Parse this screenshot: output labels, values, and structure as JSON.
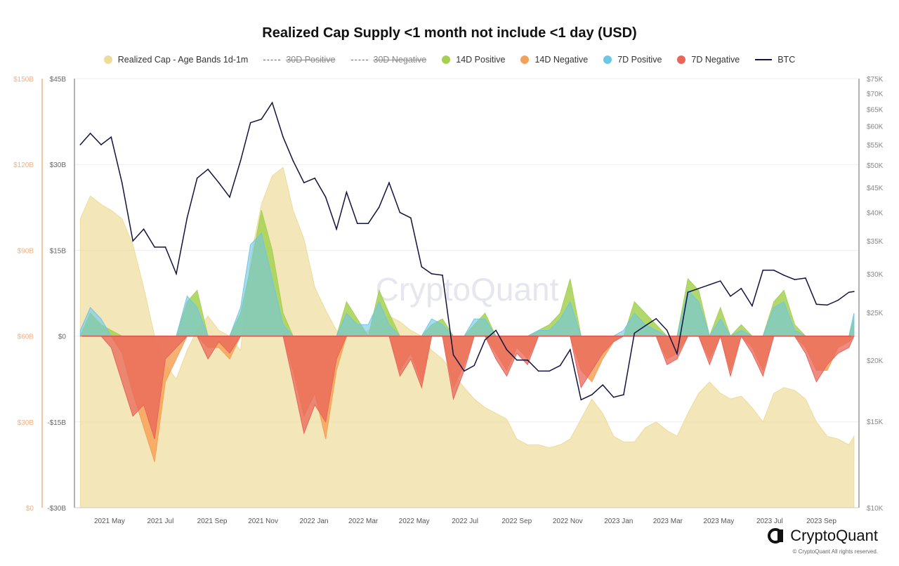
{
  "title": "Realized Cap Supply <1 month not include <1 day (USD)",
  "legend": [
    {
      "label": "Realized Cap - Age Bands 1d-1m",
      "color": "#eedc9a",
      "kind": "dot",
      "hidden": false
    },
    {
      "label": "30D Positive",
      "color": "#666666",
      "kind": "dash",
      "hidden": true
    },
    {
      "label": "30D Negative",
      "color": "#666666",
      "kind": "dash",
      "hidden": true
    },
    {
      "label": "14D Positive",
      "color": "#a5d152",
      "kind": "dot",
      "hidden": false
    },
    {
      "label": "14D Negative",
      "color": "#f4a259",
      "kind": "dot",
      "hidden": false
    },
    {
      "label": "7D Positive",
      "color": "#6ec6e6",
      "kind": "dot",
      "hidden": false
    },
    {
      "label": "7D Negative",
      "color": "#e8665a",
      "kind": "dot",
      "hidden": false
    },
    {
      "label": "BTC",
      "color": "#14123e",
      "kind": "line",
      "hidden": false
    }
  ],
  "watermark": "CryptoQuant",
  "logo_text": "CryptoQuant",
  "copyright": "© CryptoQuant All rights reserved.",
  "chart_data": {
    "type": "area",
    "x_ticks": [
      "2021 May",
      "2021 Jul",
      "2021 Sep",
      "2021 Nov",
      "2022 Jan",
      "2022 Mar",
      "2022 May",
      "2022 Jul",
      "2022 Sep",
      "2022 Nov",
      "2023 Jan",
      "2023 Mar",
      "2023 May",
      "2023 Jul",
      "2023 Sep"
    ],
    "x_tick_dates": [
      "2021-05-01",
      "2021-07-01",
      "2021-09-01",
      "2021-11-01",
      "2022-01-01",
      "2022-03-01",
      "2022-05-01",
      "2022-07-01",
      "2022-09-01",
      "2022-11-01",
      "2023-01-01",
      "2023-03-01",
      "2023-05-01",
      "2023-07-01",
      "2023-09-01"
    ],
    "x_range": [
      "2021-03-20",
      "2023-10-16"
    ],
    "y_left_outer": {
      "ticks": [
        "$0",
        "$30B",
        "$60B",
        "$90B",
        "$120B",
        "$150B"
      ],
      "range": [
        0,
        150
      ],
      "unit": "B USD"
    },
    "y_left_inner": {
      "ticks": [
        "-$30B",
        "-$15B",
        "$0",
        "$15B",
        "$30B",
        "$45B"
      ],
      "range": [
        -30,
        45
      ],
      "unit": "B USD"
    },
    "y_right": {
      "ticks": [
        "$10K",
        "$15K",
        "$20K",
        "$25K",
        "$30K",
        "$35K",
        "$40K",
        "$45K",
        "$50K",
        "$55K",
        "$60K",
        "$65K",
        "$70K",
        "$75K"
      ],
      "tick_values": [
        10,
        15,
        20,
        25,
        30,
        35,
        40,
        45,
        50,
        55,
        60,
        65,
        70,
        75
      ],
      "range": [
        10,
        75
      ],
      "scale": "log",
      "unit": "K USD"
    },
    "grid": true,
    "legend_position": "top",
    "dates": [
      "2021-03-27",
      "2021-04-08",
      "2021-04-21",
      "2021-05-03",
      "2021-05-16",
      "2021-05-29",
      "2021-06-11",
      "2021-06-24",
      "2021-07-07",
      "2021-07-20",
      "2021-08-02",
      "2021-08-14",
      "2021-08-27",
      "2021-09-09",
      "2021-09-22",
      "2021-10-05",
      "2021-10-17",
      "2021-10-30",
      "2021-11-12",
      "2021-11-25",
      "2021-12-07",
      "2021-12-20",
      "2022-01-02",
      "2022-01-15",
      "2022-01-28",
      "2022-02-09",
      "2022-02-22",
      "2022-03-07",
      "2022-03-20",
      "2022-04-01",
      "2022-04-14",
      "2022-04-27",
      "2022-05-10",
      "2022-05-22",
      "2022-06-04",
      "2022-06-17",
      "2022-06-30",
      "2022-07-12",
      "2022-07-25",
      "2022-08-07",
      "2022-08-20",
      "2022-09-01",
      "2022-09-14",
      "2022-09-27",
      "2022-10-10",
      "2022-10-23",
      "2022-11-04",
      "2022-11-17",
      "2022-11-30",
      "2022-12-13",
      "2022-12-26",
      "2023-01-07",
      "2023-01-20",
      "2023-02-02",
      "2023-02-15",
      "2023-02-28",
      "2023-03-12",
      "2023-03-25",
      "2023-04-07",
      "2023-04-20",
      "2023-05-03",
      "2023-05-15",
      "2023-05-28",
      "2023-06-10",
      "2023-06-23",
      "2023-07-06",
      "2023-07-18",
      "2023-07-31",
      "2023-08-13",
      "2023-08-26",
      "2023-09-08",
      "2023-09-21",
      "2023-10-04",
      "2023-10-10"
    ],
    "series": [
      {
        "name": "Realized Cap - Age Bands 1d-1m",
        "axis": "left_outer",
        "color": "#eedc9a",
        "values": [
          101,
          109,
          106,
          104,
          101,
          92,
          77,
          60,
          50,
          45,
          55,
          62,
          67,
          62,
          60,
          55,
          87,
          106,
          116,
          119,
          104,
          94,
          77,
          69,
          62,
          60,
          60,
          62,
          65,
          67,
          65,
          62,
          60,
          55,
          52,
          47,
          42,
          38,
          35,
          33,
          31,
          24,
          22,
          22,
          21,
          22,
          24,
          31,
          38,
          33,
          25,
          23,
          23,
          28,
          30,
          27,
          25,
          33,
          40,
          44,
          40,
          38,
          39,
          35,
          30,
          40,
          42,
          41,
          38,
          30,
          25,
          24,
          22,
          25
        ]
      },
      {
        "name": "14D",
        "axis": "left_inner",
        "positive_color": "#a5d152",
        "negative_color": "#f4a259",
        "values": [
          0,
          4,
          2,
          1,
          -3,
          -10,
          -16,
          -22,
          -8,
          -4,
          6,
          8,
          -2,
          -2,
          -4,
          4,
          12,
          22,
          15,
          4,
          -6,
          -14,
          -10,
          -18,
          -6,
          6,
          3,
          0,
          8,
          4,
          -6,
          -3,
          -8,
          2,
          3,
          -9,
          -5,
          2,
          4,
          -3,
          -6,
          -2,
          -4,
          1,
          2,
          4,
          10,
          -6,
          -8,
          -4,
          -1,
          0,
          6,
          4,
          2,
          -4,
          -3,
          10,
          8,
          -4,
          5,
          -6,
          2,
          -2,
          -6,
          6,
          8,
          2,
          -2,
          -6,
          -6,
          -2,
          -1,
          3
        ]
      },
      {
        "name": "7D",
        "axis": "left_inner",
        "positive_color": "#6ec6e6",
        "negative_color": "#e8665a",
        "values": [
          1,
          5,
          3,
          -2,
          -8,
          -14,
          -12,
          -18,
          -4,
          -2,
          7,
          5,
          -4,
          -1,
          -3,
          5,
          16,
          18,
          10,
          2,
          -8,
          -17,
          -12,
          -15,
          -4,
          4,
          2,
          2,
          6,
          2,
          -7,
          -4,
          -9,
          3,
          2,
          -11,
          -6,
          3,
          3,
          -4,
          -7,
          -3,
          -5,
          1,
          1,
          3,
          6,
          -9,
          -6,
          -3,
          -1,
          1,
          4,
          2,
          1,
          -5,
          -4,
          8,
          6,
          -5,
          3,
          -7,
          1,
          -3,
          -7,
          5,
          6,
          1,
          -3,
          -8,
          -5,
          -3,
          -2,
          4
        ]
      },
      {
        "name": "BTC",
        "axis": "right",
        "color": "#14123e",
        "values": [
          55,
          58,
          55,
          57,
          46,
          35,
          37,
          34,
          34,
          30,
          39,
          47,
          49,
          46,
          43,
          51,
          61,
          62,
          67,
          57,
          51,
          46,
          47,
          43,
          37,
          44,
          38,
          38,
          41,
          46,
          40,
          39,
          31,
          30,
          29.8,
          20.5,
          19,
          19.5,
          22,
          23,
          21,
          20,
          20,
          19,
          19,
          19.5,
          21,
          16.6,
          17,
          17.8,
          16.8,
          17,
          22.7,
          23.5,
          24.3,
          23,
          20.6,
          27.5,
          28,
          28.5,
          29,
          27,
          28,
          25.8,
          30.5,
          30.5,
          29.8,
          29.2,
          29.4,
          26,
          25.9,
          26.5,
          27.5,
          27.6
        ]
      }
    ]
  }
}
